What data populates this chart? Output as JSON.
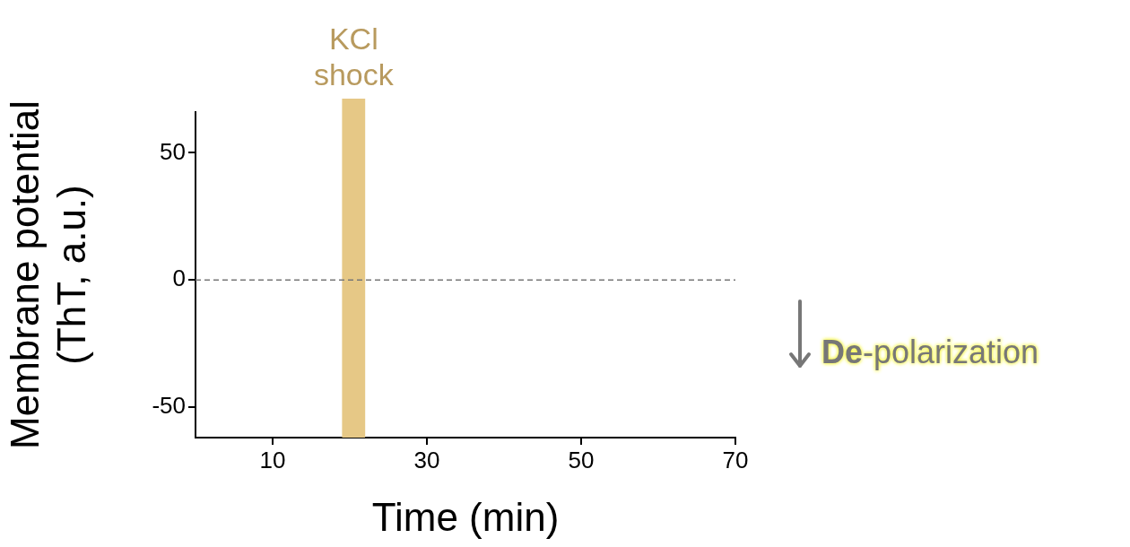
{
  "chart_data": {
    "type": "line",
    "xlabel": "Time (min)",
    "ylabel": "Membrane potential\n(ThT, a.u.)",
    "xlim": [
      0,
      70
    ],
    "xticks": [
      10,
      30,
      50,
      70
    ],
    "ylim": [
      -62,
      66
    ],
    "yticks": [
      -50,
      0,
      50
    ],
    "ref_lines": [
      {
        "axis": "y",
        "value": 0,
        "color": "#777777",
        "line_style": "dashed"
      }
    ],
    "bands": [
      {
        "axis": "x",
        "from": 19,
        "to": 22,
        "label": "KCl shock",
        "color": "#e6c886"
      }
    ],
    "annotations": [
      "De-polarization"
    ],
    "grid": false,
    "legend": false
  }
}
